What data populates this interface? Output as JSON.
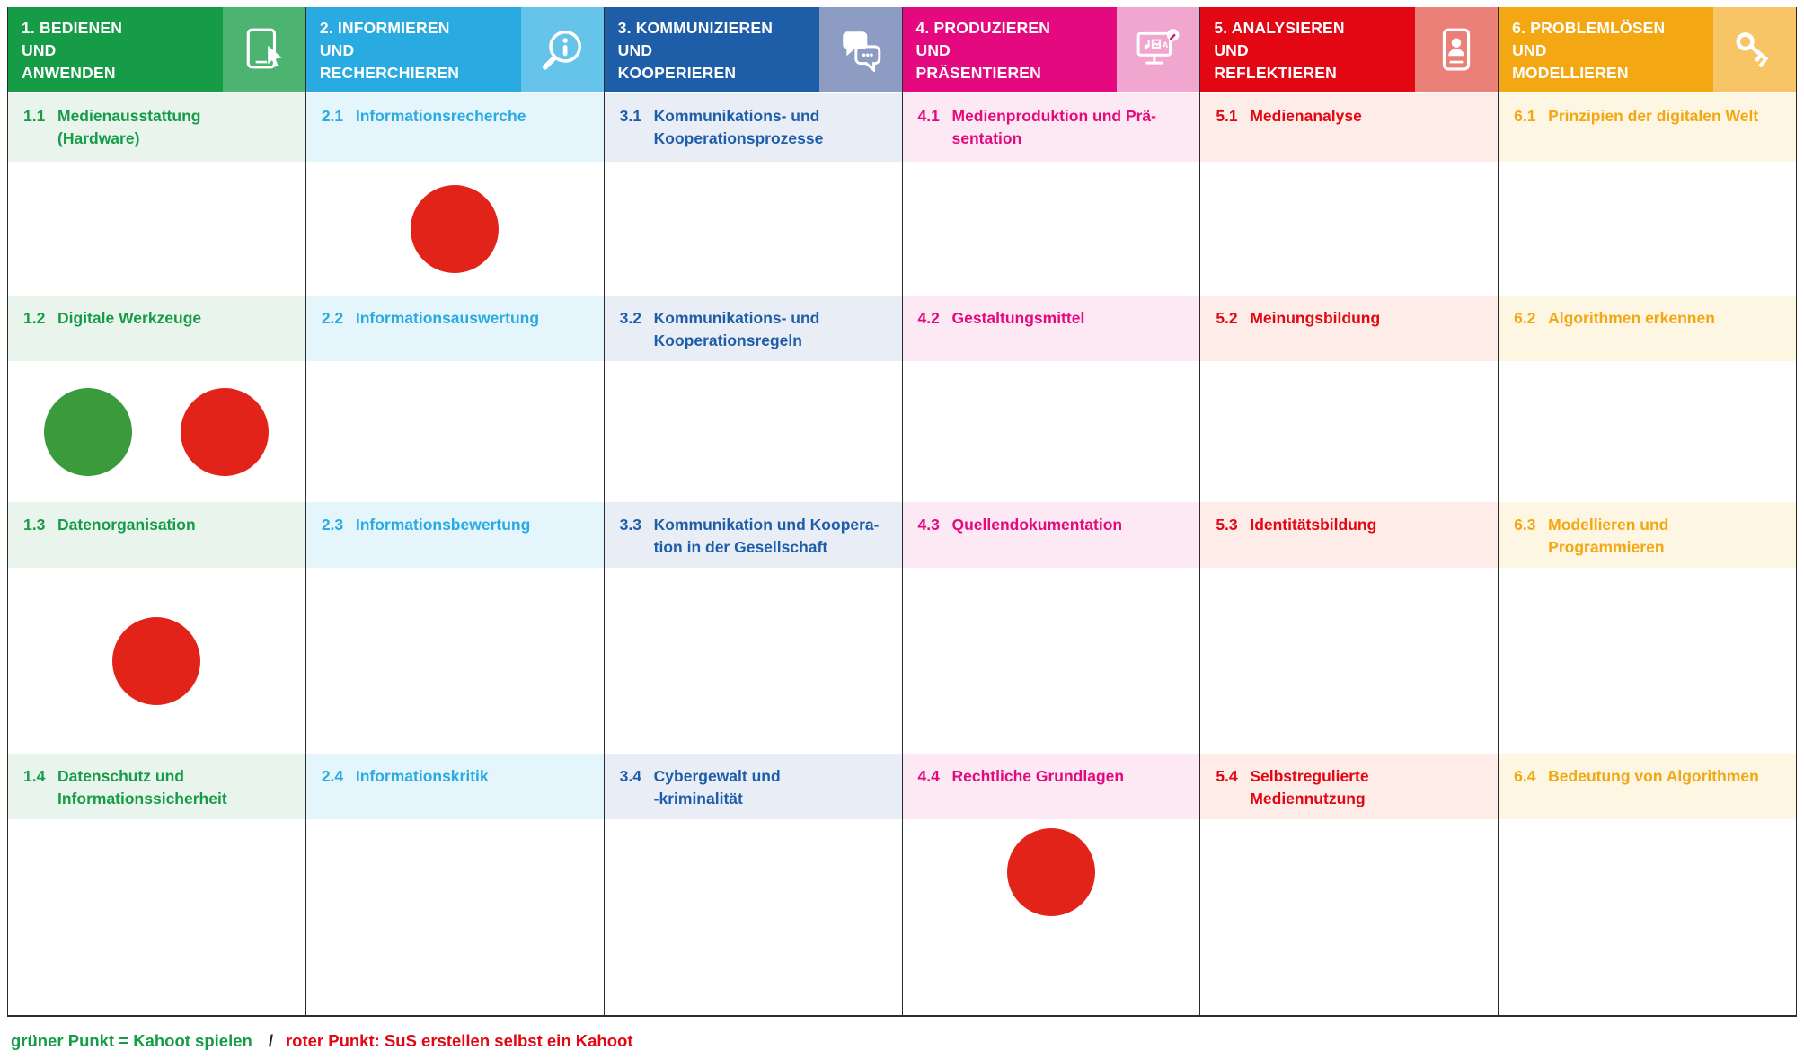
{
  "legend": {
    "green_label": "grüner Punkt = Kahoot spielen",
    "separator": "/",
    "red_label": "roter Punkt: SuS erstellen selbst ein Kahoot",
    "green_color": "#169c46",
    "red_color": "#e30613"
  },
  "dot_colors": {
    "green": "#3a9a3c",
    "red": "#e2231a"
  },
  "columns": [
    {
      "title": "1. BEDIENEN\nUND\nANWENDEN",
      "color": "#169c46",
      "icon_bg": "#4cb371",
      "tint": "#e9f5ec",
      "icon": "tablet-icon",
      "cells": [
        {
          "num": "1.1",
          "label": "Medienausstattung\n(Hardware)",
          "dots": []
        },
        {
          "num": "1.2",
          "label": "Digitale Werkzeuge",
          "dots": [
            "green",
            "red"
          ]
        },
        {
          "num": "1.3",
          "label": "Datenorganisation",
          "dots": [
            "red"
          ]
        },
        {
          "num": "1.4",
          "label": "Datenschutz und\nInformationssicherheit",
          "dots": []
        }
      ]
    },
    {
      "title": "2. INFORMIEREN\nUND\nRECHERCHIEREN",
      "color": "#29abe2",
      "icon_bg": "#66c4ea",
      "tint": "#e5f5fc",
      "icon": "info-search-icon",
      "cells": [
        {
          "num": "2.1",
          "label": "Informationsrecherche",
          "dots": [
            "red"
          ]
        },
        {
          "num": "2.2",
          "label": "Informationsauswertung",
          "dots": []
        },
        {
          "num": "2.3",
          "label": "Informationsbewertung",
          "dots": []
        },
        {
          "num": "2.4",
          "label": "Informationskritik",
          "dots": []
        }
      ]
    },
    {
      "title": "3. KOMMUNIZIEREN\nUND\nKOOPERIEREN",
      "color": "#1e5ea9",
      "icon_bg": "#8c9cc3",
      "tint": "#e9edf6",
      "icon": "speech-bubbles-icon",
      "cells": [
        {
          "num": "3.1",
          "label": "Kommunikations- und\nKooperationsprozesse",
          "dots": []
        },
        {
          "num": "3.2",
          "label": "Kommunikations- und\nKooperationsregeln",
          "dots": []
        },
        {
          "num": "3.3",
          "label": "Kommunikation und Koopera-\ntion in der Gesellschaft",
          "dots": []
        },
        {
          "num": "3.4",
          "label": "Cybergewalt und\n-kriminalität",
          "dots": []
        }
      ]
    },
    {
      "title": "4. PRODUZIEREN\nUND\nPRÄSENTIEREN",
      "color": "#e5097f",
      "icon_bg": "#f0a6ce",
      "tint": "#fce9f3",
      "icon": "media-monitor-icon",
      "cells": [
        {
          "num": "4.1",
          "label": "Medienproduktion und Prä-\nsentation",
          "dots": []
        },
        {
          "num": "4.2",
          "label": "Gestaltungsmittel",
          "dots": []
        },
        {
          "num": "4.3",
          "label": "Quellendokumentation",
          "dots": []
        },
        {
          "num": "4.4",
          "label": "Rechtliche Grundlagen",
          "dots": [
            "red"
          ]
        }
      ]
    },
    {
      "title": "5. ANALYSIEREN\nUND\nREFLEKTIEREN",
      "color": "#e30613",
      "icon_bg": "#eb8078",
      "tint": "#fdece7",
      "icon": "id-card-icon",
      "cells": [
        {
          "num": "5.1",
          "label": "Medienanalyse",
          "dots": []
        },
        {
          "num": "5.2",
          "label": "Meinungsbildung",
          "dots": []
        },
        {
          "num": "5.3",
          "label": "Identitätsbildung",
          "dots": []
        },
        {
          "num": "5.4",
          "label": "Selbstregulierte\nMediennutzung",
          "dots": []
        }
      ]
    },
    {
      "title": "6. PROBLEMLÖSEN\nUND\nMODELLIEREN",
      "color": "#f3a712",
      "icon_bg": "#f7c566",
      "tint": "#fdf6e2",
      "icon": "key-icon",
      "cells": [
        {
          "num": "6.1",
          "label": "Prinzipien der digitalen Welt",
          "dots": []
        },
        {
          "num": "6.2",
          "label": "Algorithmen erkennen",
          "dots": []
        },
        {
          "num": "6.3",
          "label": "Modellieren und\nProgrammieren",
          "dots": []
        },
        {
          "num": "6.4",
          "label": "Bedeutung von Algorithmen",
          "dots": []
        }
      ]
    }
  ]
}
